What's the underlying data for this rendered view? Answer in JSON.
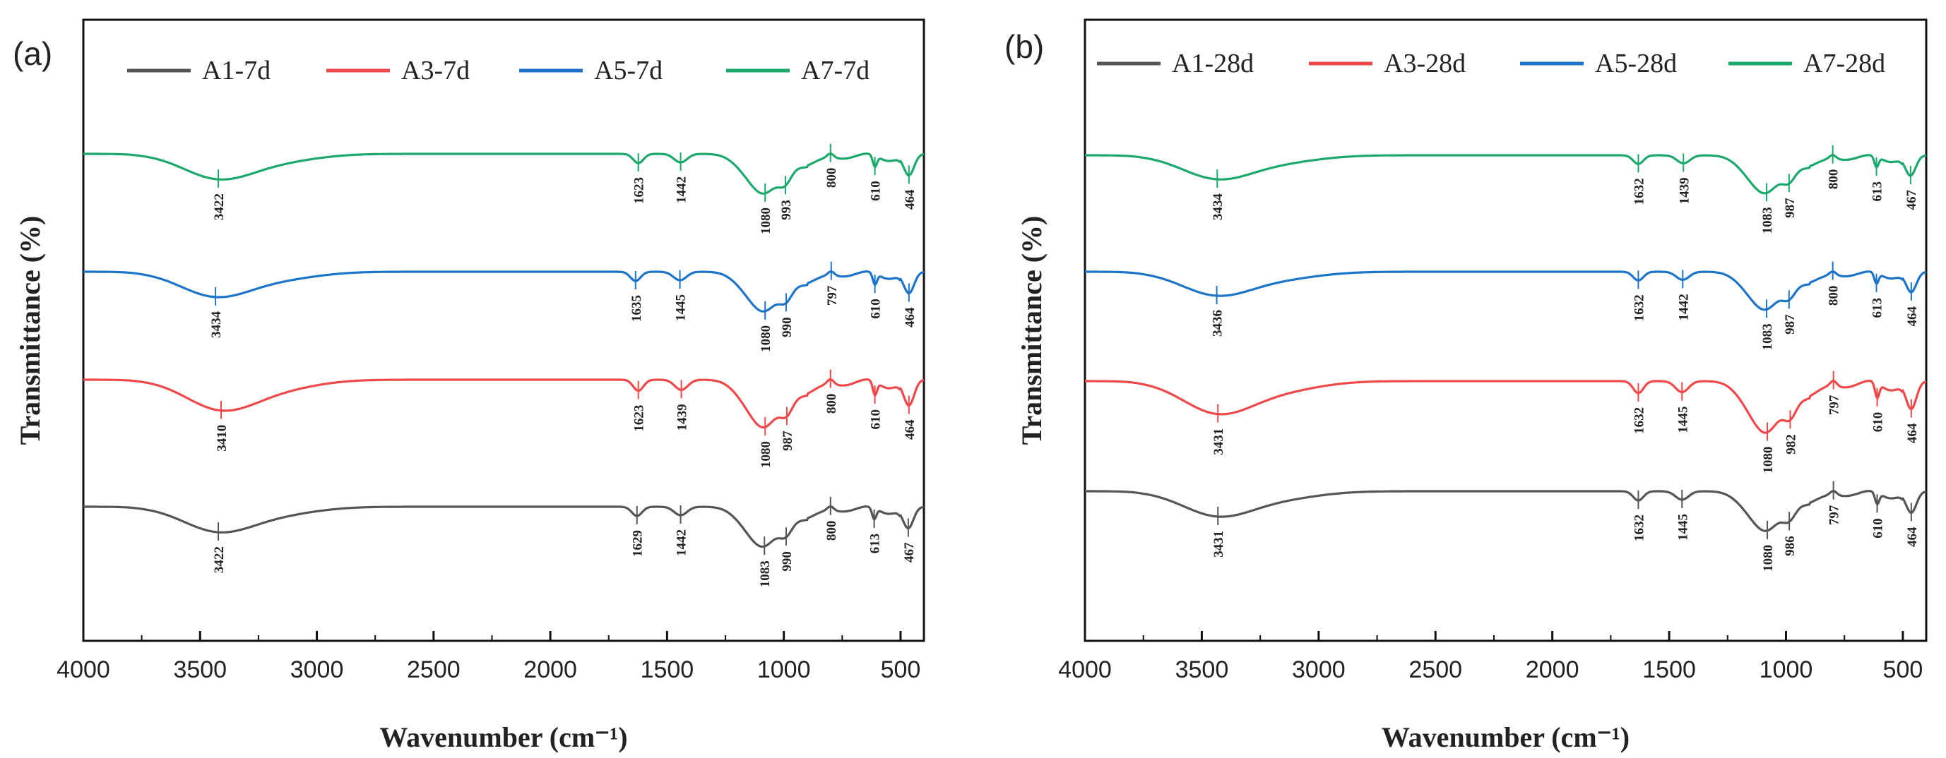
{
  "chart_data": [
    {
      "panel": "(a)",
      "type": "line",
      "xlabel": "Wavenumber (cm⁻¹)",
      "ylabel": "Transmittance (%)",
      "xlim": [
        4000,
        400
      ],
      "xticks": [
        4000,
        3500,
        3000,
        2500,
        2000,
        1500,
        1000,
        500
      ],
      "legend_position": "top",
      "series": [
        {
          "name": "A1-7d",
          "color": "#555555",
          "peaks": [
            3422,
            1629,
            1442,
            1083,
            990,
            800,
            613,
            467
          ]
        },
        {
          "name": "A3-7d",
          "color": "#f0484a",
          "peaks": [
            3410,
            1623,
            1439,
            1080,
            987,
            800,
            610,
            464
          ]
        },
        {
          "name": "A5-7d",
          "color": "#1c74c8",
          "peaks": [
            3434,
            1635,
            1445,
            1080,
            990,
            797,
            610,
            464
          ]
        },
        {
          "name": "A7-7d",
          "color": "#1aa86b",
          "peaks": [
            3422,
            1623,
            1442,
            1080,
            993,
            800,
            610,
            464
          ]
        }
      ]
    },
    {
      "panel": "(b)",
      "type": "line",
      "xlabel": "Wavenumber (cm⁻¹)",
      "ylabel": "Transmittance (%)",
      "xlim": [
        4000,
        400
      ],
      "xticks": [
        4000,
        3500,
        3000,
        2500,
        2000,
        1500,
        1000,
        500
      ],
      "legend_position": "top",
      "series": [
        {
          "name": "A1-28d",
          "color": "#555555",
          "peaks": [
            3431,
            1632,
            1445,
            1080,
            986,
            797,
            610,
            464
          ]
        },
        {
          "name": "A3-28d",
          "color": "#f0484a",
          "peaks": [
            3431,
            1632,
            1445,
            1080,
            982,
            797,
            610,
            464
          ]
        },
        {
          "name": "A5-28d",
          "color": "#1c74c8",
          "peaks": [
            3436,
            1632,
            1442,
            1083,
            987,
            800,
            613,
            464
          ]
        },
        {
          "name": "A7-28d",
          "color": "#1aa86b",
          "peaks": [
            3434,
            1632,
            1439,
            1083,
            987,
            800,
            613,
            467
          ]
        }
      ]
    }
  ]
}
